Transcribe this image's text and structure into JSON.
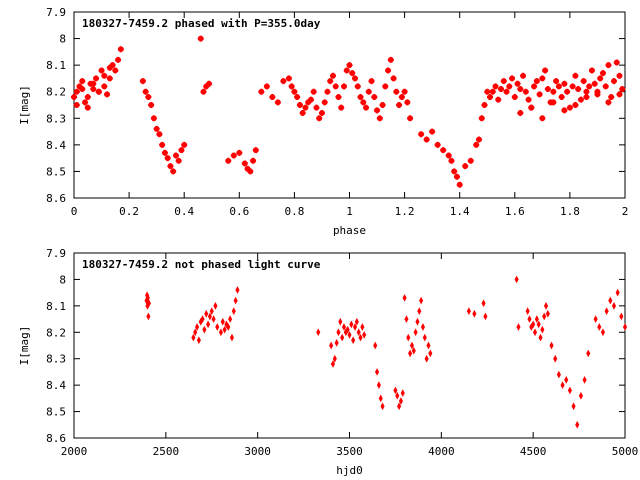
{
  "chart_data": [
    {
      "type": "scatter",
      "title": "180327-7459.2 phased with P=355.0day",
      "xlabel": "phase",
      "ylabel": "I[mag]",
      "xlim": [
        0,
        2
      ],
      "ylim": [
        8.6,
        7.9
      ],
      "y_inverted": true,
      "grid": false,
      "marker": "cross",
      "color": "#ff0000",
      "xticks": [
        "0",
        "0.2",
        "0.4",
        "0.6",
        "0.8",
        "1",
        "1.2",
        "1.4",
        "1.6",
        "1.8",
        "2"
      ],
      "yticks": [
        "7.9",
        "8",
        "8.1",
        "8.2",
        "8.3",
        "8.4",
        "8.5",
        "8.6"
      ],
      "series": [
        {
          "x": [
            0.0,
            0.01,
            0.02,
            0.03,
            0.04,
            0.05,
            0.06,
            0.07,
            0.08,
            0.09,
            0.1,
            0.11,
            0.12,
            0.13,
            0.14,
            0.15,
            0.16,
            0.17,
            0.01,
            0.03,
            0.05,
            0.07,
            0.09,
            0.11,
            0.13,
            0.25,
            0.26,
            0.27,
            0.28,
            0.29,
            0.3,
            0.31,
            0.32,
            0.33,
            0.34,
            0.35,
            0.36,
            0.37,
            0.38,
            0.39,
            0.4,
            0.46,
            0.47,
            0.48,
            0.49,
            0.56,
            0.58,
            0.6,
            0.62,
            0.63,
            0.64,
            0.65,
            0.66,
            0.68,
            0.7,
            0.72,
            0.74,
            0.76,
            0.78,
            0.79,
            0.8,
            0.81,
            0.82,
            0.83,
            0.84,
            0.85,
            0.86,
            0.87,
            0.88,
            0.89,
            0.9,
            0.91,
            0.92,
            0.93,
            0.94,
            0.95,
            0.96,
            0.97,
            0.98,
            0.99,
            1.0,
            1.01,
            1.02,
            1.03,
            1.04,
            1.05,
            1.06,
            1.07,
            1.08,
            1.09,
            1.1,
            1.11,
            1.12,
            1.13,
            1.14,
            1.15,
            1.16,
            1.17,
            1.18,
            1.19,
            1.2,
            1.21,
            1.22,
            1.26,
            1.28,
            1.3,
            1.32,
            1.34,
            1.36,
            1.37,
            1.38,
            1.39,
            1.4,
            1.42,
            1.44,
            1.46,
            1.47,
            1.48,
            1.49,
            1.5,
            1.51,
            1.52,
            1.53,
            1.54,
            1.55,
            1.56,
            1.57,
            1.58,
            1.59,
            1.6,
            1.61,
            1.62,
            1.63,
            1.64,
            1.65,
            1.66,
            1.67,
            1.68,
            1.69,
            1.7,
            1.71,
            1.72,
            1.73,
            1.74,
            1.75,
            1.76,
            1.77,
            1.78,
            1.79,
            1.8,
            1.81,
            1.82,
            1.83,
            1.84,
            1.85,
            1.86,
            1.87,
            1.88,
            1.89,
            1.9,
            1.91,
            1.92,
            1.93,
            1.94,
            1.95,
            1.96,
            1.97,
            1.98,
            1.99,
            1.62,
            1.66,
            1.7,
            1.74,
            1.78,
            1.82,
            1.86,
            1.9,
            1.94,
            1.98
          ],
          "y": [
            8.22,
            8.2,
            8.18,
            8.19,
            8.24,
            8.26,
            8.17,
            8.19,
            8.15,
            8.2,
            8.12,
            8.18,
            8.21,
            8.15,
            8.1,
            8.12,
            8.08,
            8.04,
            8.25,
            8.16,
            8.22,
            8.17,
            8.2,
            8.14,
            8.11,
            8.16,
            8.2,
            8.22,
            8.25,
            8.3,
            8.34,
            8.36,
            8.4,
            8.43,
            8.45,
            8.48,
            8.5,
            8.44,
            8.46,
            8.42,
            8.4,
            8.0,
            8.2,
            8.18,
            8.17,
            8.46,
            8.44,
            8.43,
            8.47,
            8.49,
            8.5,
            8.46,
            8.42,
            8.2,
            8.18,
            8.22,
            8.24,
            8.16,
            8.15,
            8.18,
            8.2,
            8.22,
            8.25,
            8.28,
            8.26,
            8.24,
            8.23,
            8.2,
            8.26,
            8.3,
            8.28,
            8.24,
            8.2,
            8.16,
            8.14,
            8.18,
            8.22,
            8.26,
            8.18,
            8.12,
            8.1,
            8.13,
            8.15,
            8.18,
            8.22,
            8.24,
            8.26,
            8.2,
            8.16,
            8.22,
            8.27,
            8.3,
            8.25,
            8.18,
            8.12,
            8.08,
            8.15,
            8.2,
            8.25,
            8.22,
            8.2,
            8.24,
            8.3,
            8.36,
            8.38,
            8.35,
            8.4,
            8.42,
            8.44,
            8.46,
            8.5,
            8.52,
            8.55,
            8.48,
            8.46,
            8.4,
            8.38,
            8.3,
            8.25,
            8.2,
            8.22,
            8.2,
            8.18,
            8.23,
            8.19,
            8.16,
            8.2,
            8.18,
            8.15,
            8.22,
            8.17,
            8.19,
            8.14,
            8.2,
            8.23,
            8.26,
            8.18,
            8.16,
            8.21,
            8.15,
            8.12,
            8.19,
            8.24,
            8.2,
            8.16,
            8.18,
            8.22,
            8.17,
            8.2,
            8.26,
            8.18,
            8.14,
            8.19,
            8.23,
            8.16,
            8.2,
            8.18,
            8.12,
            8.17,
            8.21,
            8.15,
            8.13,
            8.18,
            8.1,
            8.22,
            8.16,
            8.09,
            8.14,
            8.19,
            8.28,
            8.26,
            8.3,
            8.24,
            8.27,
            8.25,
            8.22,
            8.2,
            8.24,
            8.21
          ]
        }
      ]
    },
    {
      "type": "scatter",
      "title": "180327-7459.2 not phased light curve",
      "xlabel": "hjd0",
      "ylabel": "I[mag]",
      "xlim": [
        2000,
        5000
      ],
      "ylim": [
        8.6,
        7.9
      ],
      "y_inverted": true,
      "grid": false,
      "marker": "diamond",
      "color": "#ff0000",
      "xticks": [
        "2000",
        "2500",
        "3000",
        "3500",
        "4000",
        "4500",
        "5000"
      ],
      "yticks": [
        "7.9",
        "8",
        "8.1",
        "8.2",
        "8.3",
        "8.4",
        "8.5",
        "8.6"
      ],
      "series": [
        {
          "x": [
            2395,
            2398,
            2400,
            2402,
            2405,
            2408,
            2650,
            2660,
            2670,
            2680,
            2690,
            2700,
            2710,
            2720,
            2730,
            2740,
            2750,
            2760,
            2770,
            2780,
            2800,
            2810,
            2820,
            2830,
            2840,
            2850,
            2860,
            2870,
            2880,
            2890,
            3330,
            3400,
            3410,
            3420,
            3430,
            3440,
            3450,
            3460,
            3470,
            3480,
            3490,
            3500,
            3510,
            3520,
            3530,
            3540,
            3550,
            3560,
            3570,
            3580,
            3640,
            3650,
            3660,
            3670,
            3680,
            3750,
            3760,
            3770,
            3780,
            3790,
            3800,
            3810,
            3820,
            3830,
            3840,
            3850,
            3860,
            3870,
            3880,
            3890,
            3900,
            3910,
            3920,
            3930,
            3940,
            4150,
            4180,
            4230,
            4240,
            4410,
            4420,
            4470,
            4480,
            4490,
            4500,
            4510,
            4520,
            4530,
            4540,
            4550,
            4560,
            4570,
            4580,
            4600,
            4620,
            4640,
            4660,
            4680,
            4700,
            4720,
            4740,
            4760,
            4780,
            4800,
            4840,
            4860,
            4880,
            4900,
            4920,
            4940,
            4960,
            4980,
            5000
          ],
          "y": [
            8.08,
            8.06,
            8.1,
            8.07,
            8.14,
            8.09,
            8.22,
            8.2,
            8.18,
            8.23,
            8.16,
            8.15,
            8.19,
            8.13,
            8.17,
            8.14,
            8.12,
            8.15,
            8.1,
            8.18,
            8.2,
            8.16,
            8.19,
            8.17,
            8.18,
            8.15,
            8.22,
            8.12,
            8.08,
            8.04,
            8.2,
            8.25,
            8.32,
            8.3,
            8.24,
            8.2,
            8.16,
            8.22,
            8.18,
            8.2,
            8.19,
            8.21,
            8.17,
            8.23,
            8.18,
            8.16,
            8.2,
            8.22,
            8.18,
            8.21,
            8.25,
            8.35,
            8.4,
            8.45,
            8.48,
            8.42,
            8.44,
            8.48,
            8.46,
            8.43,
            8.07,
            8.15,
            8.22,
            8.28,
            8.25,
            8.27,
            8.2,
            8.16,
            8.12,
            8.08,
            8.18,
            8.22,
            8.3,
            8.25,
            8.28,
            8.12,
            8.13,
            8.09,
            8.14,
            8.0,
            8.18,
            8.12,
            8.15,
            8.18,
            8.17,
            8.2,
            8.15,
            8.17,
            8.22,
            8.19,
            8.14,
            8.1,
            8.13,
            8.25,
            8.3,
            8.36,
            8.4,
            8.38,
            8.42,
            8.48,
            8.55,
            8.44,
            8.38,
            8.28,
            8.15,
            8.18,
            8.2,
            8.12,
            8.08,
            8.1,
            8.05,
            8.14,
            8.18
          ]
        }
      ]
    }
  ]
}
